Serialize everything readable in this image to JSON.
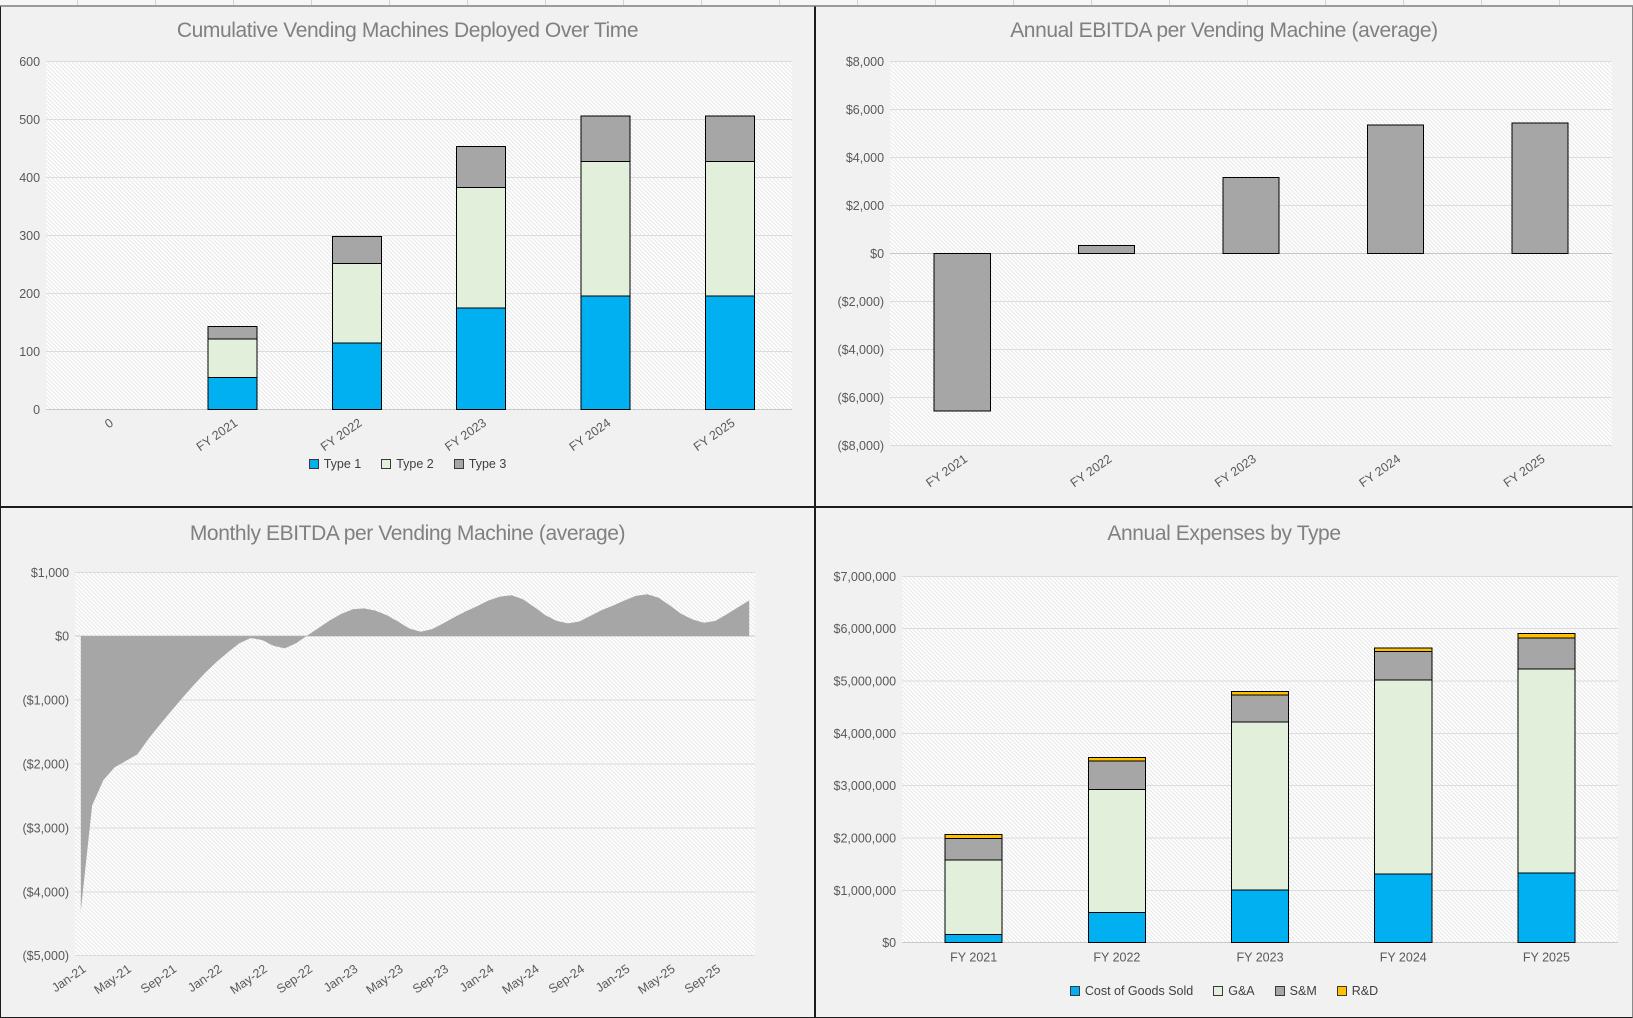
{
  "palette": {
    "chart_background": "#f1f1f1",
    "plot_base": "#ffffff",
    "plot_hatch_line": "#e4e4e4",
    "gridline": "#dcdcdc",
    "axis_zero_line": "#c8c8c8",
    "bar_outline": "#000000",
    "title_color": "#808080",
    "tick_color": "#595959",
    "panel_border": "#1c1c1c",
    "type1_blue": "#00B0F0",
    "type2_green": "#E2EFDA",
    "neutral_gray": "#A6A6A6",
    "rd_orange": "#FFC000"
  },
  "chart_data": [
    {
      "type": "bar",
      "stacked": true,
      "title": "Cumulative Vending Machines Deployed Over Time",
      "categories": [
        "0",
        "FY 2021",
        "FY 2022",
        "FY 2023",
        "FY 2024",
        "FY 2025"
      ],
      "series": [
        {
          "name": "Type 1",
          "color": "#00B0F0",
          "values": [
            0,
            55,
            115,
            175,
            196,
            196
          ]
        },
        {
          "name": "Type 2",
          "color": "#E2EFDA",
          "values": [
            0,
            67,
            137,
            208,
            231,
            231
          ]
        },
        {
          "name": "Type 3",
          "color": "#A6A6A6",
          "values": [
            0,
            21,
            46,
            70,
            79,
            79
          ]
        }
      ],
      "ylim": [
        0,
        600
      ],
      "yticks": [
        {
          "v": 600,
          "label": "600"
        },
        {
          "v": 500,
          "label": "500"
        },
        {
          "v": 400,
          "label": "400"
        },
        {
          "v": 300,
          "label": "300"
        },
        {
          "v": 200,
          "label": "200"
        },
        {
          "v": 100,
          "label": "100"
        },
        {
          "v": 0,
          "label": "0"
        }
      ],
      "baseline": 0,
      "grid": true,
      "legend": true,
      "legend_position": "bottom",
      "x_label_rotated": true
    },
    {
      "type": "bar",
      "stacked": false,
      "title": "Annual EBITDA per Vending Machine (average)",
      "categories": [
        "FY 2021",
        "FY 2022",
        "FY 2023",
        "FY 2024",
        "FY 2025"
      ],
      "series": [
        {
          "name": "EBITDA per machine",
          "color": "#A6A6A6",
          "values": [
            -6550,
            330,
            3170,
            5350,
            5420
          ]
        }
      ],
      "ylim": [
        -8000,
        8000
      ],
      "yticks": [
        {
          "v": 8000,
          "label": "$8,000"
        },
        {
          "v": 6000,
          "label": "$6,000"
        },
        {
          "v": 4000,
          "label": "$4,000"
        },
        {
          "v": 2000,
          "label": "$2,000"
        },
        {
          "v": 0,
          "label": "$0"
        },
        {
          "v": -2000,
          "label": "($2,000)"
        },
        {
          "v": -4000,
          "label": "($4,000)"
        },
        {
          "v": -6000,
          "label": "($6,000)"
        },
        {
          "v": -8000,
          "label": "($8,000)"
        }
      ],
      "baseline": 0,
      "grid": true,
      "legend": false,
      "x_label_rotated": true
    },
    {
      "type": "area",
      "title": "Monthly EBITDA per Vending Machine (average)",
      "x": [
        "Jan-21",
        "Feb-21",
        "Mar-21",
        "Apr-21",
        "May-21",
        "Jun-21",
        "Jul-21",
        "Aug-21",
        "Sep-21",
        "Oct-21",
        "Nov-21",
        "Dec-21",
        "Jan-22",
        "Feb-22",
        "Mar-22",
        "Apr-22",
        "May-22",
        "Jun-22",
        "Jul-22",
        "Aug-22",
        "Sep-22",
        "Oct-22",
        "Nov-22",
        "Dec-22",
        "Jan-23",
        "Feb-23",
        "Mar-23",
        "Apr-23",
        "May-23",
        "Jun-23",
        "Jul-23",
        "Aug-23",
        "Sep-23",
        "Oct-23",
        "Nov-23",
        "Dec-23",
        "Jan-24",
        "Feb-24",
        "Mar-24",
        "Apr-24",
        "May-24",
        "Jun-24",
        "Jul-24",
        "Aug-24",
        "Sep-24",
        "Oct-24",
        "Nov-24",
        "Dec-24",
        "Jan-25",
        "Feb-25",
        "Mar-25",
        "Apr-25",
        "May-25",
        "Jun-25",
        "Jul-25",
        "Aug-25",
        "Sep-25",
        "Oct-25",
        "Nov-25",
        "Dec-25"
      ],
      "values": [
        -4300,
        -2650,
        -2250,
        -2050,
        -1950,
        -1850,
        -1600,
        -1380,
        -1170,
        -960,
        -760,
        -570,
        -400,
        -250,
        -110,
        -30,
        -60,
        -150,
        -190,
        -110,
        10,
        130,
        250,
        350,
        420,
        435,
        400,
        330,
        230,
        120,
        70,
        110,
        200,
        300,
        390,
        470,
        560,
        620,
        640,
        580,
        460,
        330,
        240,
        200,
        230,
        320,
        410,
        480,
        560,
        630,
        655,
        600,
        480,
        350,
        260,
        210,
        240,
        340,
        450,
        560
      ],
      "area_color": "#A6A6A6",
      "xtick_every": 4,
      "ylim": [
        -5000,
        1000
      ],
      "yticks": [
        {
          "v": 1000,
          "label": "$1,000"
        },
        {
          "v": 0,
          "label": "$0"
        },
        {
          "v": -1000,
          "label": "($1,000)"
        },
        {
          "v": -2000,
          "label": "($2,000)"
        },
        {
          "v": -3000,
          "label": "($3,000)"
        },
        {
          "v": -4000,
          "label": "($4,000)"
        },
        {
          "v": -5000,
          "label": "($5,000)"
        }
      ],
      "baseline": 0,
      "grid": true,
      "legend": false,
      "x_label_rotated": true
    },
    {
      "type": "bar",
      "stacked": true,
      "title": "Annual Expenses by Type",
      "categories": [
        "FY 2021",
        "FY 2022",
        "FY 2023",
        "FY 2024",
        "FY 2025"
      ],
      "series": [
        {
          "name": "Cost of Goods Sold",
          "color": "#00B0F0",
          "values": [
            160000,
            580000,
            1010000,
            1310000,
            1330000
          ]
        },
        {
          "name": "G&A",
          "color": "#E2EFDA",
          "values": [
            1420000,
            2350000,
            3210000,
            3710000,
            3900000
          ]
        },
        {
          "name": "S&M",
          "color": "#A6A6A6",
          "values": [
            410000,
            540000,
            510000,
            540000,
            590000
          ]
        },
        {
          "name": "R&D",
          "color": "#FFC000",
          "values": [
            80000,
            70000,
            70000,
            70000,
            90000
          ]
        }
      ],
      "ylim": [
        0,
        7000000
      ],
      "yticks": [
        {
          "v": 7000000,
          "label": "$7,000,000"
        },
        {
          "v": 6000000,
          "label": "$6,000,000"
        },
        {
          "v": 5000000,
          "label": "$5,000,000"
        },
        {
          "v": 4000000,
          "label": "$4,000,000"
        },
        {
          "v": 3000000,
          "label": "$3,000,000"
        },
        {
          "v": 2000000,
          "label": "$2,000,000"
        },
        {
          "v": 1000000,
          "label": "$1,000,000"
        },
        {
          "v": 0,
          "label": "$0"
        }
      ],
      "baseline": 0,
      "grid": true,
      "legend": true,
      "legend_position": "bottom",
      "x_label_rotated": false
    }
  ]
}
